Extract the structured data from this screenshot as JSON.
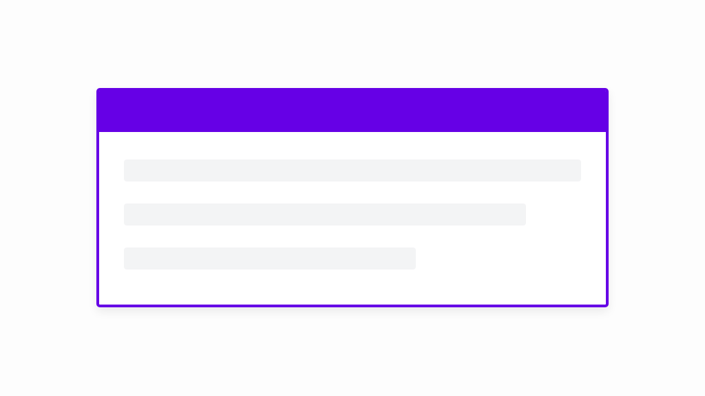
{
  "card": {
    "accent_color": "#6600e6",
    "placeholder_color": "#f3f4f5",
    "state": "loading-skeleton",
    "placeholder_lines": 3
  }
}
